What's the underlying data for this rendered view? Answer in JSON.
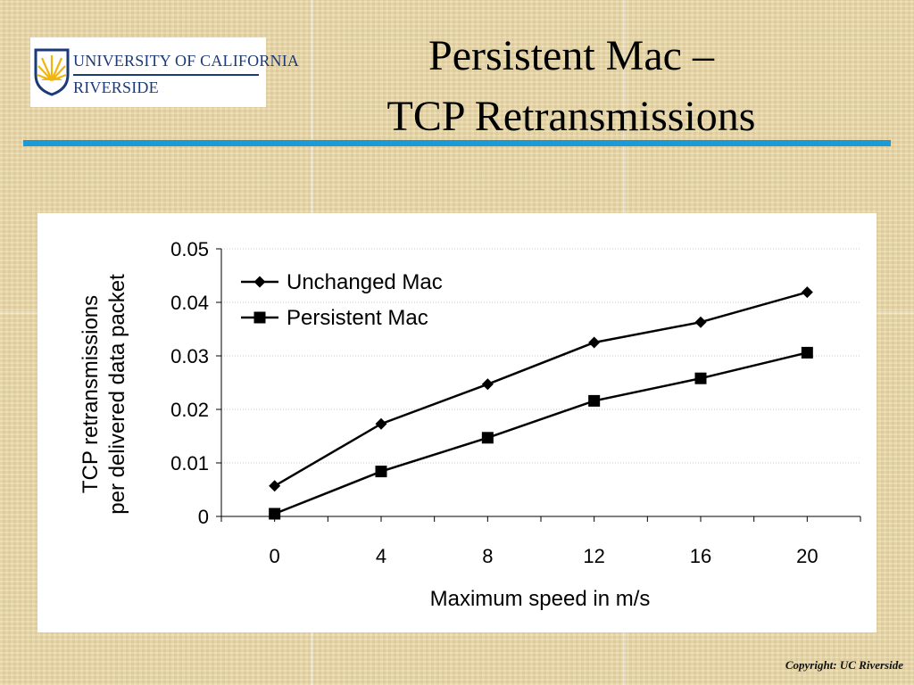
{
  "header": {
    "logo": {
      "line1": "UNIVERSITY OF CALIFORNIA",
      "line2": "RIVERSIDE"
    },
    "title_line1": "Persistent Mac –",
    "title_line2": "TCP Retransmissions"
  },
  "colors": {
    "accent_rule": "#1a9ad6",
    "logo_blue": "#1b3a78",
    "logo_gold": "#f2b50f"
  },
  "chart_data": {
    "type": "line",
    "title": "",
    "xlabel": "Maximum speed in m/s",
    "ylabel_line1": "TCP retransmissions",
    "ylabel_line2": "per delivered data packet",
    "x": [
      0,
      4,
      8,
      12,
      16,
      20
    ],
    "x_tick_labels": [
      "0",
      "4",
      "8",
      "12",
      "16",
      "20"
    ],
    "y_tick_labels": [
      "0",
      "0.01",
      "0.02",
      "0.03",
      "0.04",
      "0.05"
    ],
    "ylim": [
      0,
      0.05
    ],
    "grid": true,
    "legend_position": "top-left",
    "series": [
      {
        "name": "Unchanged Mac",
        "marker": "diamond",
        "values": [
          0.0057,
          0.0173,
          0.0247,
          0.0325,
          0.0363,
          0.0419
        ]
      },
      {
        "name": "Persistent Mac",
        "marker": "square",
        "values": [
          0.0005,
          0.0084,
          0.0147,
          0.0216,
          0.0258,
          0.0306
        ]
      }
    ]
  },
  "footer": {
    "copyright": "Copyright: UC Riverside"
  }
}
